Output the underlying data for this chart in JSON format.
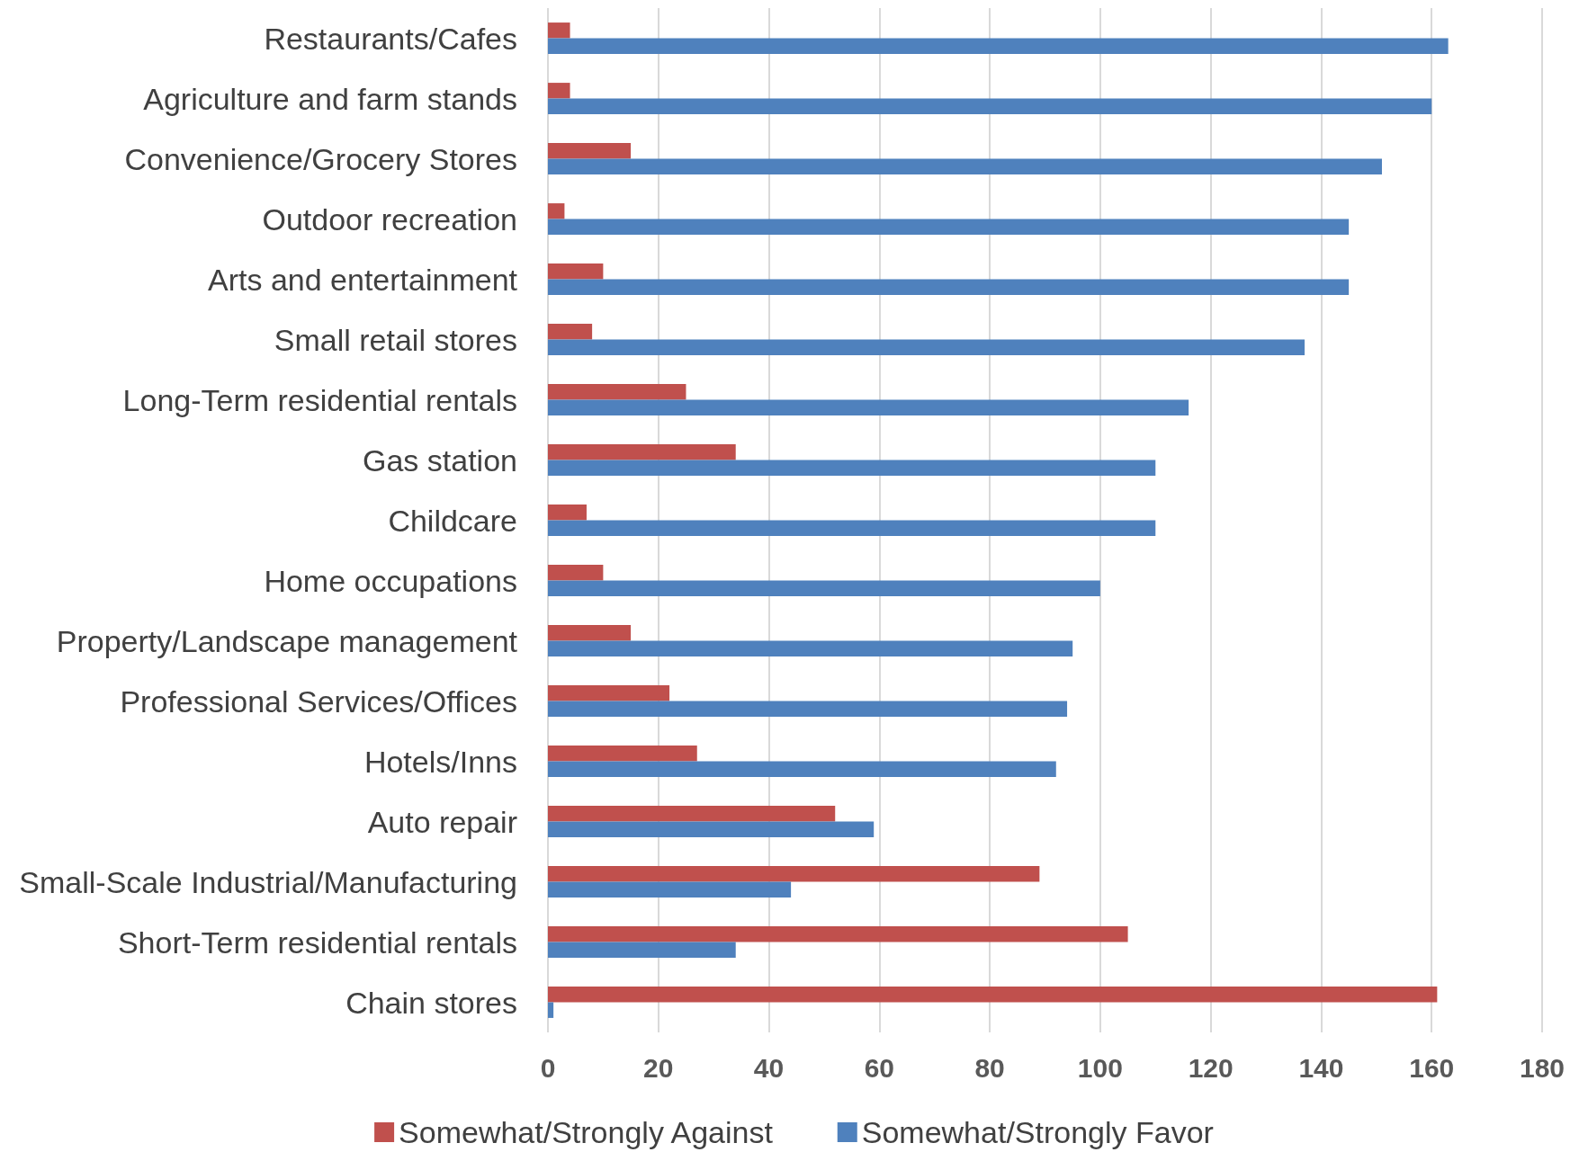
{
  "chart_data": {
    "type": "bar",
    "orientation": "horizontal",
    "categories": [
      "Restaurants/Cafes",
      "Agriculture and farm stands",
      "Convenience/Grocery Stores",
      "Outdoor recreation",
      "Arts and entertainment",
      "Small retail stores",
      "Long-Term residential rentals",
      "Gas station",
      "Childcare",
      "Home occupations",
      "Property/Landscape management",
      "Professional Services/Offices",
      "Hotels/Inns",
      "Auto repair",
      "Small-Scale Industrial/Manufacturing",
      "Short-Term residential rentals",
      "Chain stores"
    ],
    "series": [
      {
        "name": "Somewhat/Strongly Against",
        "color": "#c0504d",
        "values": [
          4,
          4,
          15,
          3,
          10,
          8,
          25,
          34,
          7,
          10,
          15,
          22,
          27,
          52,
          89,
          105,
          161
        ]
      },
      {
        "name": "Somewhat/Strongly Favor",
        "color": "#4f81bd",
        "values": [
          163,
          160,
          151,
          145,
          145,
          137,
          116,
          110,
          110,
          100,
          95,
          94,
          92,
          59,
          44,
          34,
          1
        ]
      }
    ],
    "xlim": [
      0,
      180
    ],
    "xticks": [
      0,
      20,
      40,
      60,
      80,
      100,
      120,
      140,
      160,
      180
    ],
    "grid": "x",
    "legend": "bottom"
  }
}
